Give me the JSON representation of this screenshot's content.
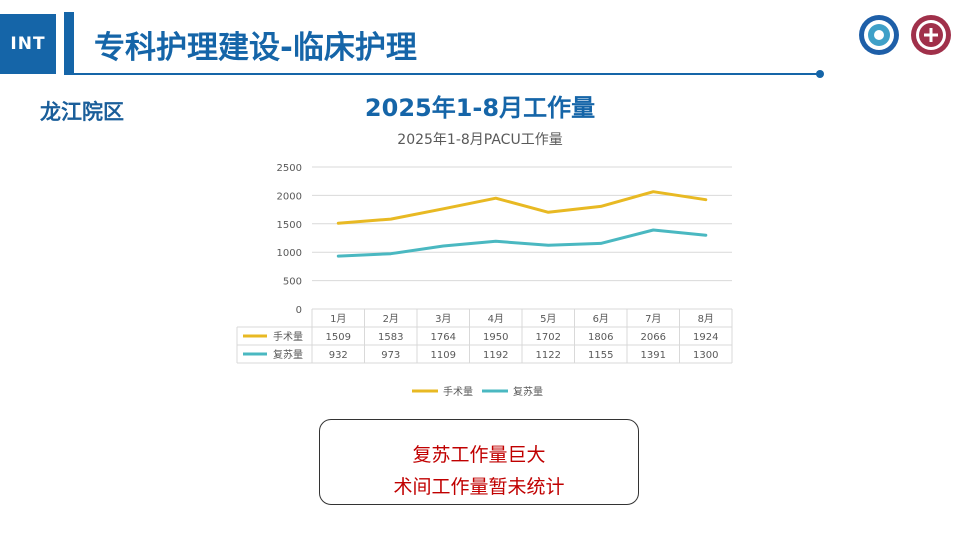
{
  "header": {
    "badge": "INT",
    "title": "专科护理建设-临床护理"
  },
  "campus": "龙江院区",
  "main_title": "2025年1-8月工作量",
  "logos": [
    "university-seal-icon",
    "hospital-logo-icon"
  ],
  "chart_data": {
    "type": "line",
    "title": "2025年1-8月PACU工作量",
    "categories": [
      "1月",
      "2月",
      "3月",
      "4月",
      "5月",
      "6月",
      "7月",
      "8月"
    ],
    "ylim": [
      0,
      2500
    ],
    "yticks": [
      0,
      500,
      1000,
      1500,
      2000,
      2500
    ],
    "grid": true,
    "legend": "bottom",
    "data_table": true,
    "series": [
      {
        "name": "手术量",
        "color": "#e8b923",
        "values": [
          1509,
          1583,
          1764,
          1950,
          1702,
          1806,
          2066,
          1924
        ]
      },
      {
        "name": "复苏量",
        "color": "#4ab8c1",
        "values": [
          932,
          973,
          1109,
          1192,
          1122,
          1155,
          1391,
          1300
        ]
      }
    ]
  },
  "note": {
    "line1": "复苏工作量巨大",
    "line2": "术间工作量暂未统计"
  },
  "colors": {
    "accent": "#1565a8",
    "note_text": "#c00000"
  }
}
